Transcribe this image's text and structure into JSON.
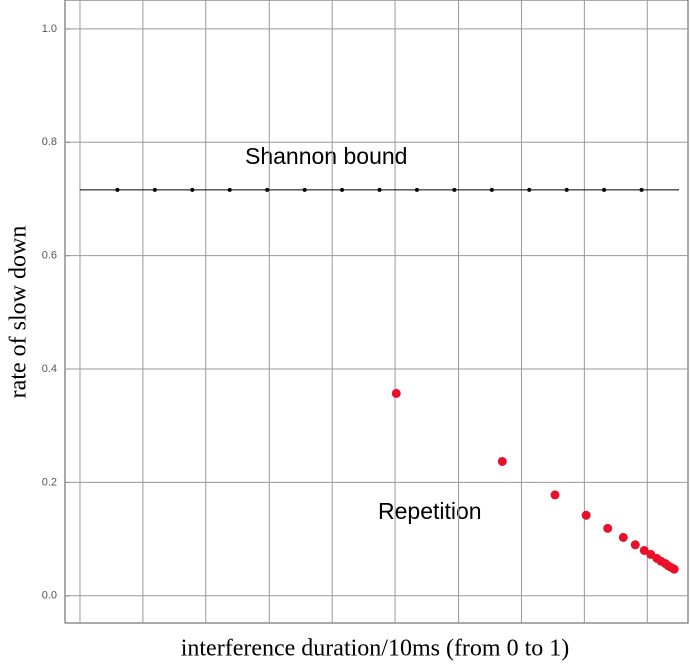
{
  "chart_data": {
    "type": "scatter",
    "x_label": "interference duration/10ms  (from 0 to 1)",
    "y_label": "rate of slow down",
    "xlim": [
      -0.025,
      1.015
    ],
    "ylim": [
      -0.048,
      1.051
    ],
    "yticks": [
      {
        "value": 0,
        "label": "0.0"
      },
      0.2,
      0.4,
      0.6,
      0.8,
      {
        "value": 1,
        "label": "1.0"
      }
    ],
    "xgrid": [
      0,
      0.105,
      0.21,
      0.316,
      0.421,
      0.526,
      0.632,
      0.737,
      0.842,
      0.947
    ],
    "grid": true,
    "series": [
      {
        "name": "Shannon bound",
        "color": "#000000",
        "marker_size": 2,
        "line_span": [
          0,
          1
        ],
        "x": [
          0.0625,
          0.125,
          0.1875,
          0.25,
          0.3125,
          0.375,
          0.4375,
          0.5,
          0.5625,
          0.625,
          0.6875,
          0.75,
          0.8125,
          0.875,
          0.9375
        ],
        "values": [
          0.716,
          0.716,
          0.716,
          0.716,
          0.716,
          0.716,
          0.716,
          0.716,
          0.716,
          0.716,
          0.716,
          0.716,
          0.716,
          0.716,
          0.716
        ]
      },
      {
        "name": "Repetition",
        "color": "#e8102a",
        "marker_size": 4.5,
        "x": [
          0.528,
          0.705,
          0.793,
          0.845,
          0.881,
          0.907,
          0.927,
          0.942,
          0.953,
          0.963,
          0.97,
          0.977,
          0.982,
          0.987,
          0.992
        ],
        "values": [
          0.357,
          0.237,
          0.178,
          0.142,
          0.119,
          0.103,
          0.09,
          0.08,
          0.073,
          0.066,
          0.061,
          0.057,
          0.053,
          0.05,
          0.047
        ]
      }
    ]
  }
}
